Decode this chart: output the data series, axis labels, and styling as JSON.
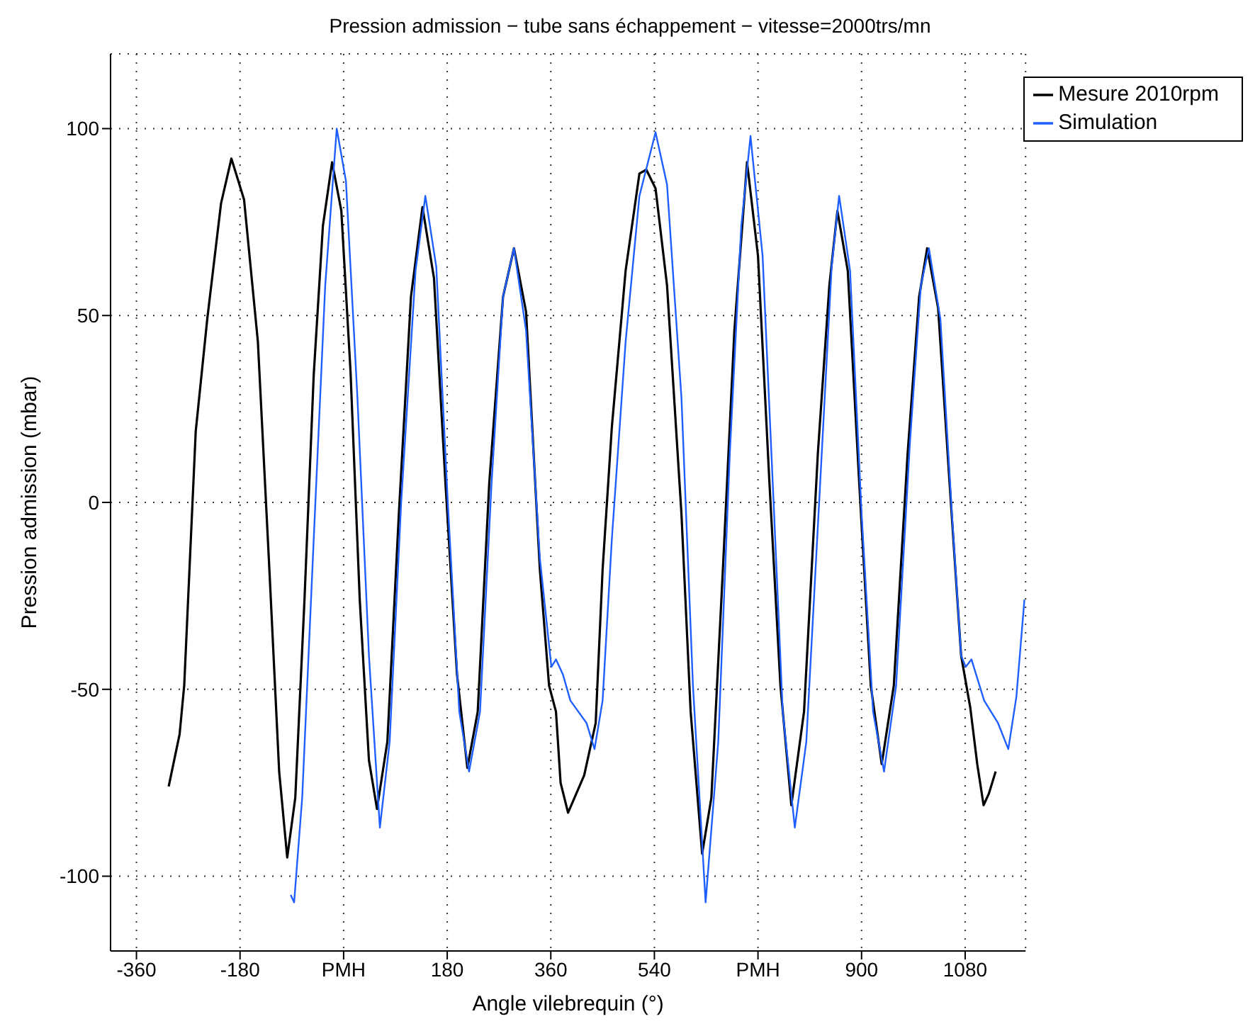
{
  "chart_data": {
    "type": "line",
    "title": "Pression admission − tube sans échappement −  vitesse=2000trs/mn",
    "xlabel": "Angle vilebrequin (°)",
    "ylabel": "Pression admission (mbar)",
    "xlim": [
      -405,
      1185
    ],
    "ylim": [
      -120,
      120
    ],
    "xticks": [
      -360,
      -180,
      {
        "value": 0,
        "label": "PMH"
      },
      180,
      360,
      540,
      {
        "value": 720,
        "label": "PMH"
      },
      900,
      1080
    ],
    "yticks": [
      -100,
      -50,
      0,
      50,
      100
    ],
    "grid": true,
    "legend": "top right",
    "marker": "none",
    "line_style": "solid",
    "series": [
      {
        "name": "Mesure 2010rpm",
        "color": "#000000",
        "x": [
          -304,
          -285,
          -277,
          -257,
          -237,
          -213,
          -195,
          -173,
          -149,
          -129,
          -112,
          -98,
          -84,
          -68,
          -52,
          -36,
          -20,
          -4,
          12,
          28,
          44,
          58,
          76,
          96,
          117,
          137,
          157,
          177,
          197,
          215,
          233,
          253,
          277,
          296,
          317,
          341,
          357,
          369,
          377,
          390,
          418,
          438,
          450,
          466,
          490,
          514,
          526,
          542,
          562,
          587,
          603,
          623,
          639,
          659,
          679,
          701,
          720,
          740,
          759,
          778,
          800,
          824,
          844,
          858,
          876,
          896,
          916,
          935,
          956,
          980,
          1000,
          1014,
          1033,
          1053,
          1073,
          1089,
          1101,
          1112,
          1121,
          1133
        ],
        "values": [
          -76,
          -62,
          -49,
          19,
          49,
          80,
          92,
          81,
          43,
          -18,
          -72,
          -95,
          -79,
          -26,
          34,
          74,
          91,
          78,
          35,
          -26,
          -69,
          -82,
          -64,
          -3,
          55,
          79,
          60,
          5,
          -46,
          -71,
          -56,
          5,
          55,
          68,
          51,
          -18,
          -49,
          -56,
          -75,
          -83,
          -73,
          -59,
          -18,
          20,
          62,
          88,
          89,
          84,
          58,
          -3,
          -56,
          -94,
          -79,
          -18,
          46,
          91,
          66,
          5,
          -49,
          -81,
          -56,
          13,
          58,
          78,
          62,
          5,
          -49,
          -70,
          -49,
          13,
          55,
          68,
          52,
          5,
          -41,
          -55,
          -70,
          -81,
          -78,
          -72
        ]
      },
      {
        "name": "Simulation",
        "color": "#1f5fff",
        "x": [
          -92,
          -86,
          -72,
          -52,
          -32,
          -12,
          4,
          24,
          44,
          63,
          80,
          100,
          125,
          142,
          161,
          181,
          201,
          218,
          237,
          257,
          277,
          296,
          317,
          341,
          361,
          369,
          381,
          394,
          422,
          436,
          450,
          466,
          490,
          514,
          542,
          562,
          587,
          607,
          629,
          651,
          671,
          691,
          707,
          728,
          748,
          763,
          784,
          804,
          828,
          848,
          861,
          880,
          900,
          920,
          939,
          960,
          984,
          1003,
          1017,
          1037,
          1057,
          1073,
          1081,
          1091,
          1113,
          1137,
          1155,
          1169,
          1183
        ],
        "values": [
          -105,
          -107,
          -79,
          -10,
          58,
          100,
          86,
          28,
          -41,
          -87,
          -64,
          0,
          62,
          82,
          63,
          0,
          -56,
          -72,
          -56,
          5,
          55,
          68,
          46,
          -15,
          -44,
          -42,
          -46,
          -53,
          -59,
          -66,
          -53,
          -10,
          43,
          82,
          99,
          85,
          28,
          -49,
          -107,
          -64,
          13,
          74,
          98,
          66,
          -3,
          -56,
          -87,
          -64,
          5,
          63,
          82,
          62,
          -3,
          -56,
          -72,
          -49,
          16,
          58,
          68,
          49,
          -3,
          -41,
          -44,
          -42,
          -53,
          -59,
          -66,
          -52,
          -26
        ]
      }
    ]
  }
}
